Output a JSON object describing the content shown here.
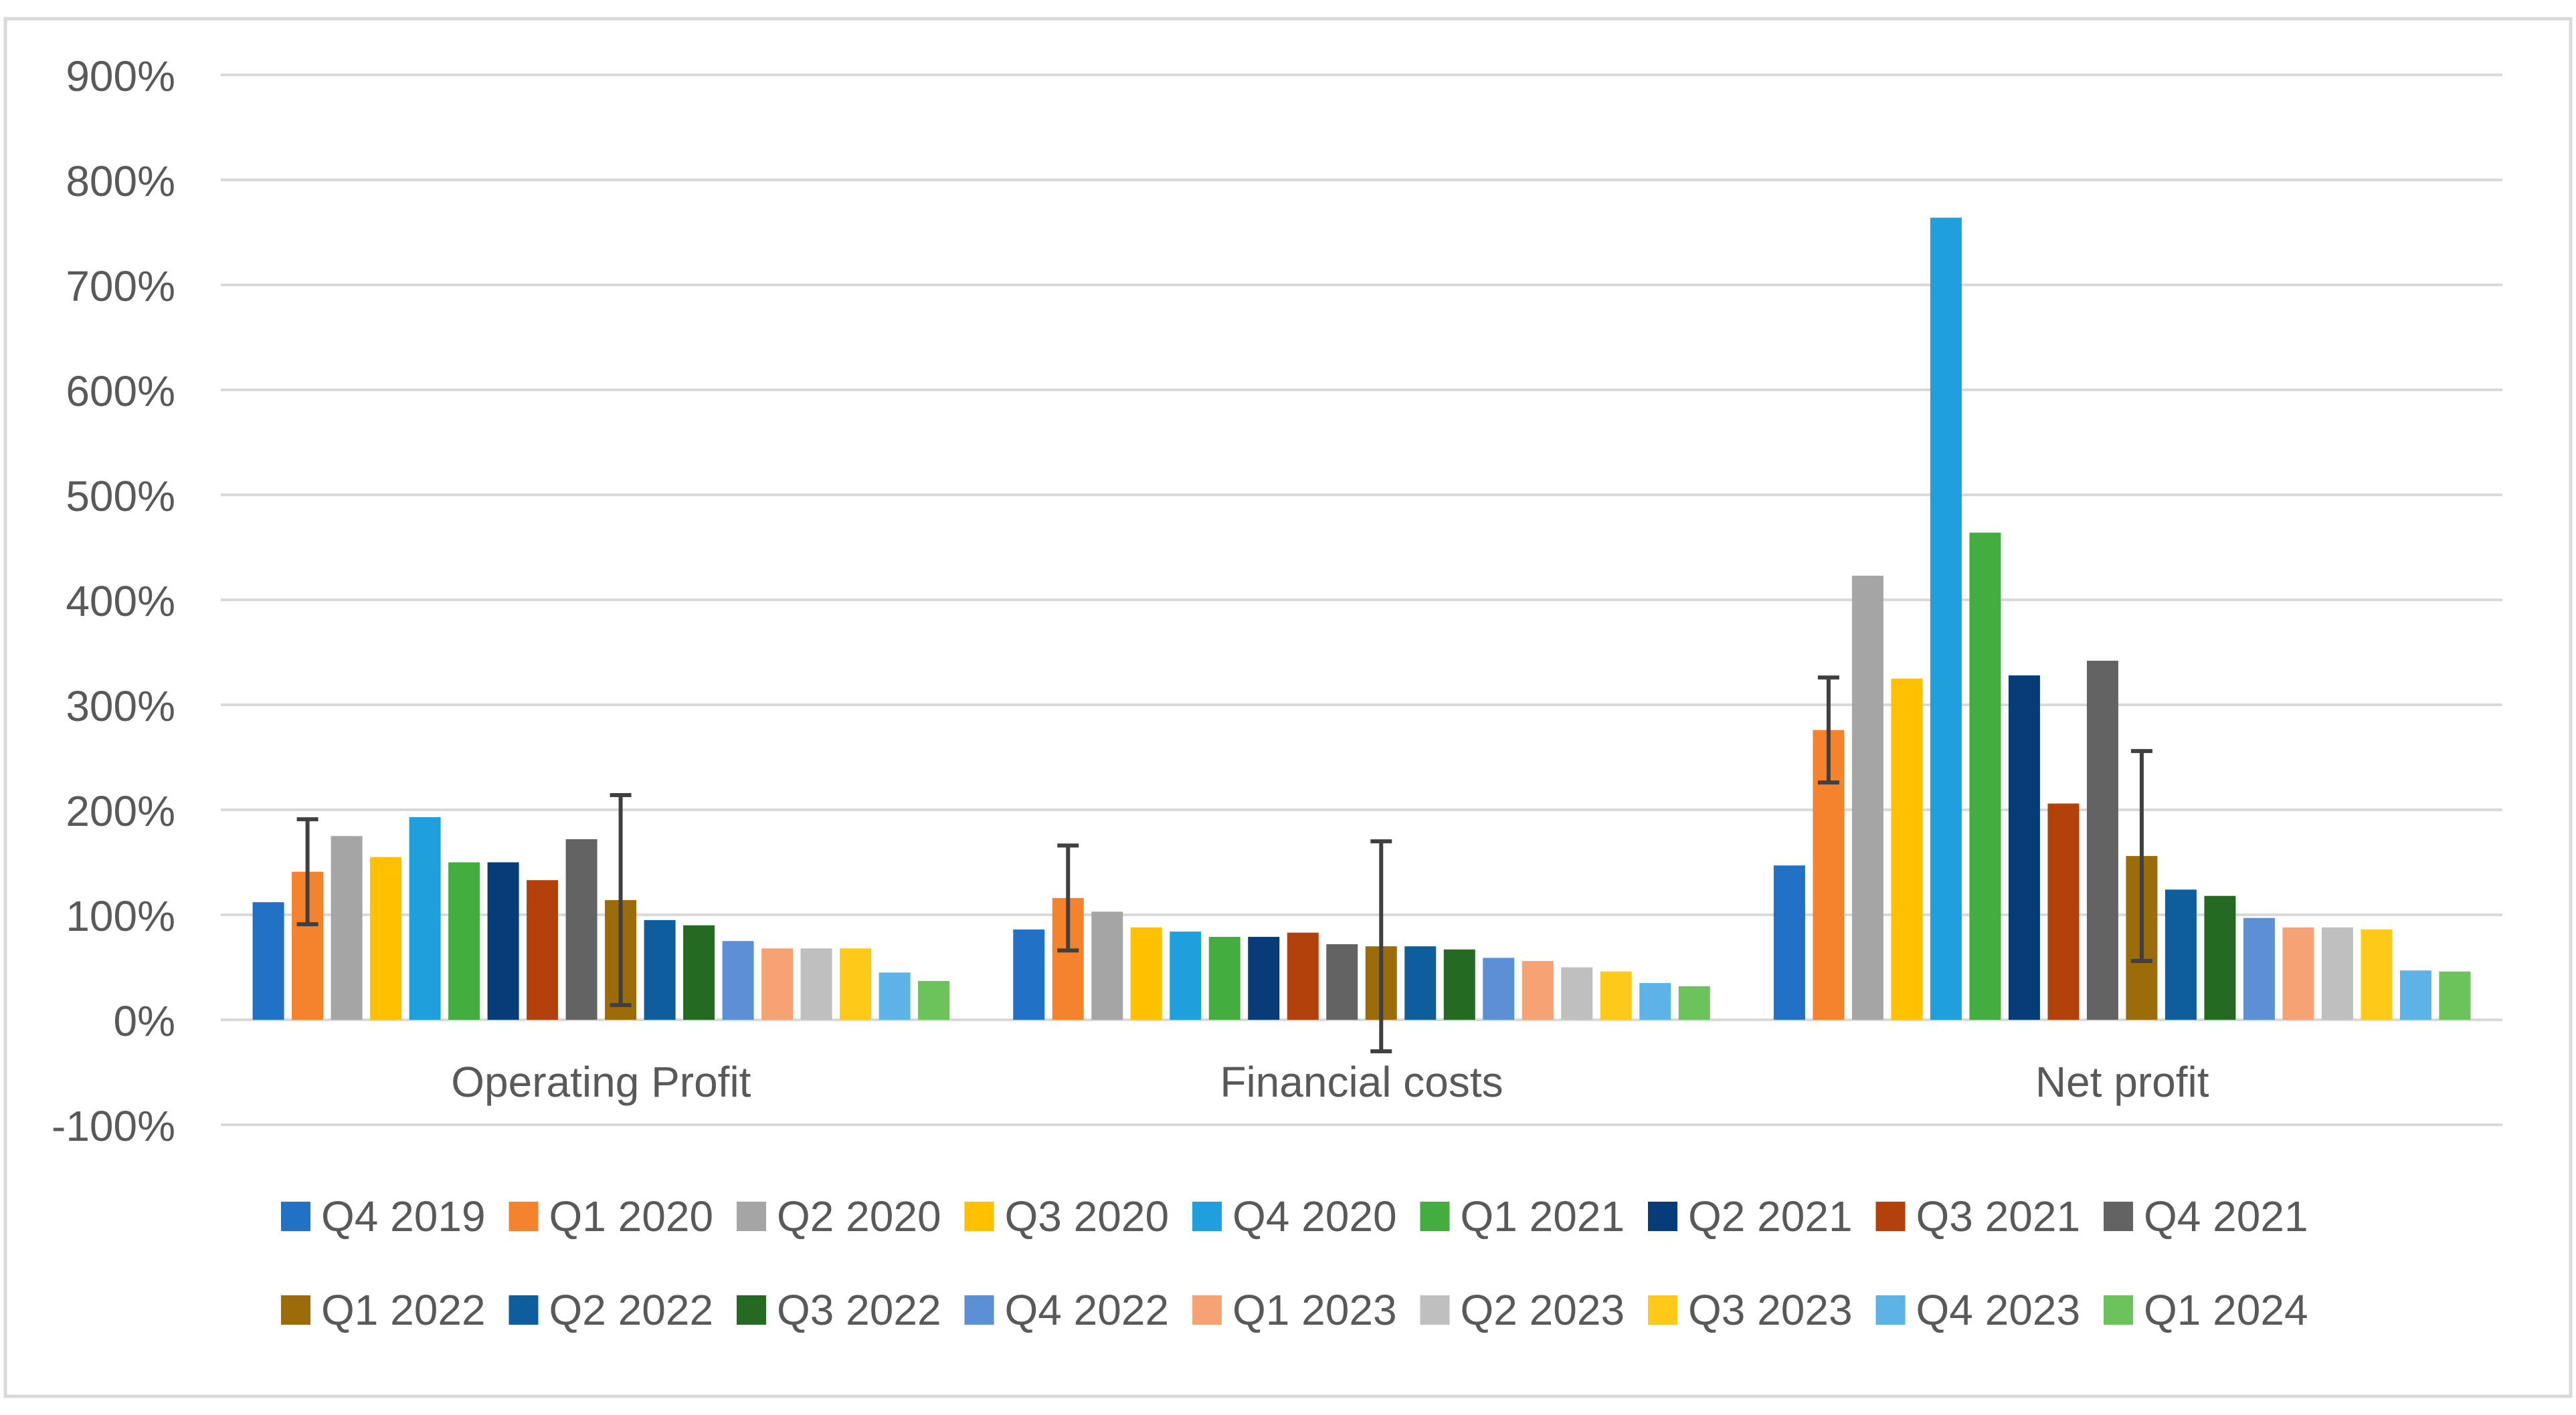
{
  "chart_data": {
    "type": "bar",
    "title": "",
    "xlabel": "",
    "ylabel": "",
    "ylim": [
      -100,
      900
    ],
    "yticks": [
      -100,
      0,
      100,
      200,
      300,
      400,
      500,
      600,
      700,
      800,
      900
    ],
    "ytick_labels": [
      "-100%",
      "0%",
      "100%",
      "200%",
      "300%",
      "400%",
      "500%",
      "600%",
      "700%",
      "800%",
      "900%"
    ],
    "grid": true,
    "legend_position": "bottom",
    "categories": [
      "Operating Profit",
      "Financial costs",
      "Net profit"
    ],
    "series": [
      {
        "name": "Q4 2019",
        "color": "#2171C7",
        "values": [
          112,
          86,
          147
        ]
      },
      {
        "name": "Q1 2020",
        "color": "#F5822D",
        "values": [
          141,
          116,
          276
        ],
        "error": [
          50,
          50,
          50
        ]
      },
      {
        "name": "Q2 2020",
        "color": "#A5A5A5",
        "values": [
          175,
          103,
          423
        ]
      },
      {
        "name": "Q3 2020",
        "color": "#FFC000",
        "values": [
          155,
          88,
          325
        ]
      },
      {
        "name": "Q4 2020",
        "color": "#1F9FDC",
        "values": [
          193,
          84,
          764
        ]
      },
      {
        "name": "Q1 2021",
        "color": "#44AD3F",
        "values": [
          150,
          79,
          464
        ]
      },
      {
        "name": "Q2 2021",
        "color": "#063C78",
        "values": [
          150,
          79,
          328
        ]
      },
      {
        "name": "Q3 2021",
        "color": "#B2410B",
        "values": [
          133,
          83,
          206
        ]
      },
      {
        "name": "Q4 2021",
        "color": "#636363",
        "values": [
          172,
          72,
          342
        ]
      },
      {
        "name": "Q1 2022",
        "color": "#9C6B0A",
        "values": [
          114,
          70,
          156
        ],
        "error": [
          100,
          100,
          100
        ]
      },
      {
        "name": "Q2 2022",
        "color": "#0E5D9C",
        "values": [
          95,
          70,
          124
        ]
      },
      {
        "name": "Q3 2022",
        "color": "#256A22",
        "values": [
          90,
          67,
          118
        ]
      },
      {
        "name": "Q4 2022",
        "color": "#5B8FD6",
        "values": [
          75,
          59,
          97
        ]
      },
      {
        "name": "Q1 2023",
        "color": "#F7A274",
        "values": [
          68,
          56,
          88
        ]
      },
      {
        "name": "Q2 2023",
        "color": "#BFBFBF",
        "values": [
          68,
          50,
          88
        ]
      },
      {
        "name": "Q3 2023",
        "color": "#FFC91A",
        "values": [
          68,
          46,
          86
        ]
      },
      {
        "name": "Q4 2023",
        "color": "#5DB3E6",
        "values": [
          45,
          35,
          47
        ]
      },
      {
        "name": "Q1 2024",
        "color": "#6CC25B",
        "values": [
          37,
          32,
          46
        ]
      }
    ]
  }
}
